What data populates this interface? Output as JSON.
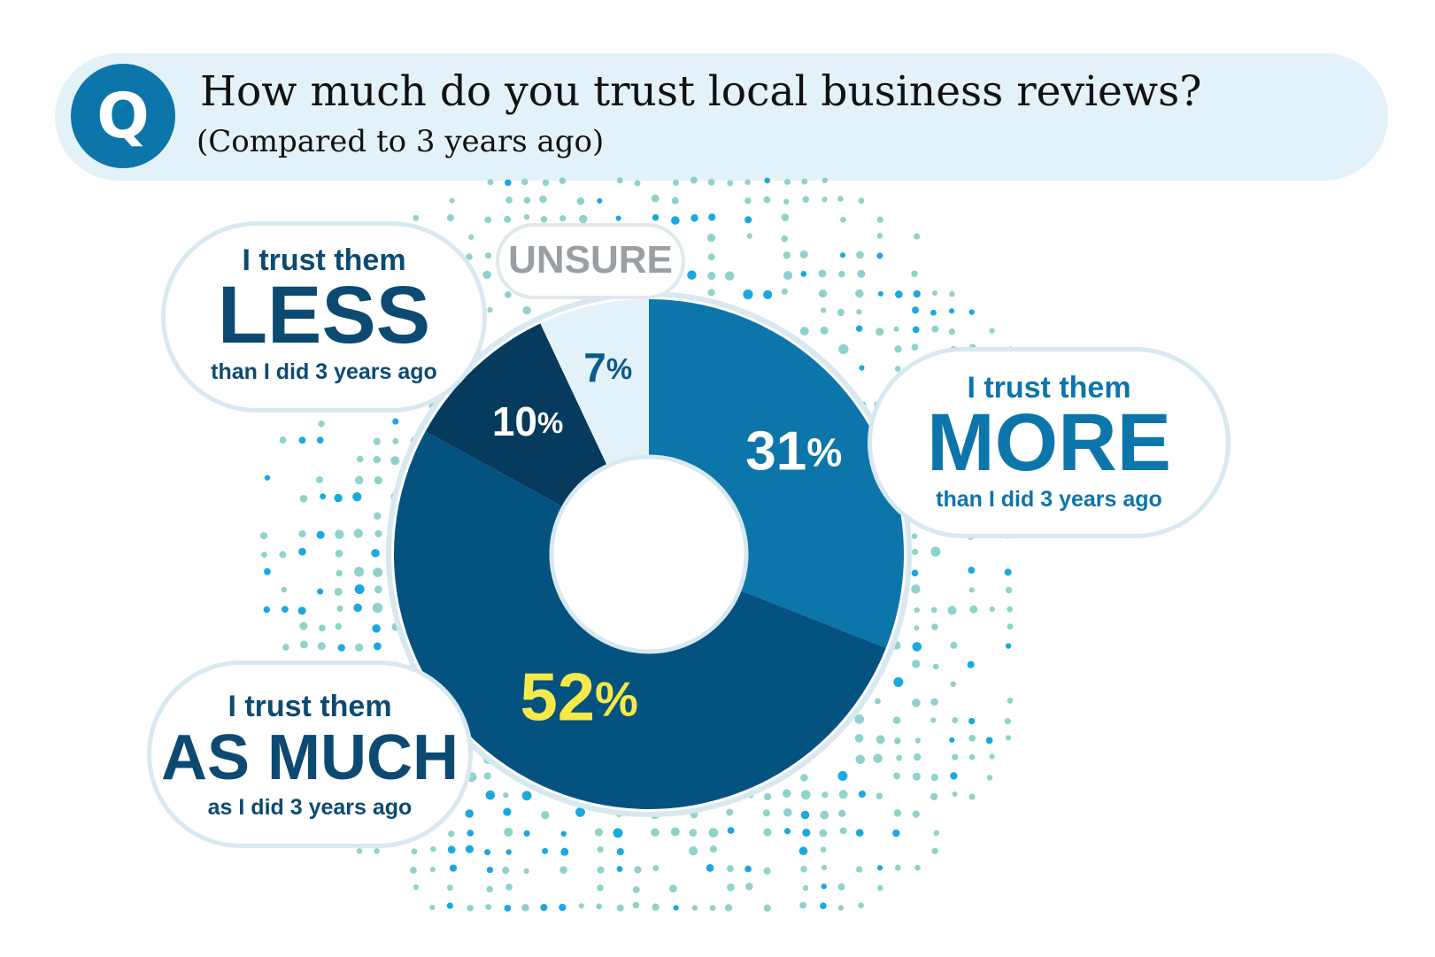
{
  "title": "How much do you trust local business reviews?",
  "subtitle": "(Compared to 3 years ago)",
  "icon": {
    "name": "question-q-icon",
    "glyph": "Q"
  },
  "colors": {
    "more": "#0c75aa",
    "as_much": "#045280",
    "less": "#073b5e",
    "unsure": "#e3f2f9",
    "highlight": "#f7ea48",
    "dot_teal": "#8fd2cc",
    "dot_blue": "#1aa8df"
  },
  "labels": {
    "more": {
      "small": "I trust them",
      "big": "MORE",
      "tail": "than I did 3 years ago"
    },
    "less": {
      "small": "I trust them",
      "big": "LESS",
      "tail": "than I did 3 years ago"
    },
    "as_much": {
      "small": "I trust them",
      "big": "AS MUCH",
      "tail": "as I did 3 years ago"
    },
    "unsure": {
      "big": "UNSURE"
    }
  },
  "chart_data": {
    "type": "pie",
    "title": "How much do you trust local business reviews?",
    "subtitle": "(Compared to 3 years ago)",
    "categories": [
      "MORE",
      "AS MUCH",
      "LESS",
      "UNSURE"
    ],
    "values": [
      31,
      52,
      10,
      7
    ],
    "value_labels": [
      "31",
      "52",
      "10",
      "7"
    ],
    "unit": "%"
  }
}
